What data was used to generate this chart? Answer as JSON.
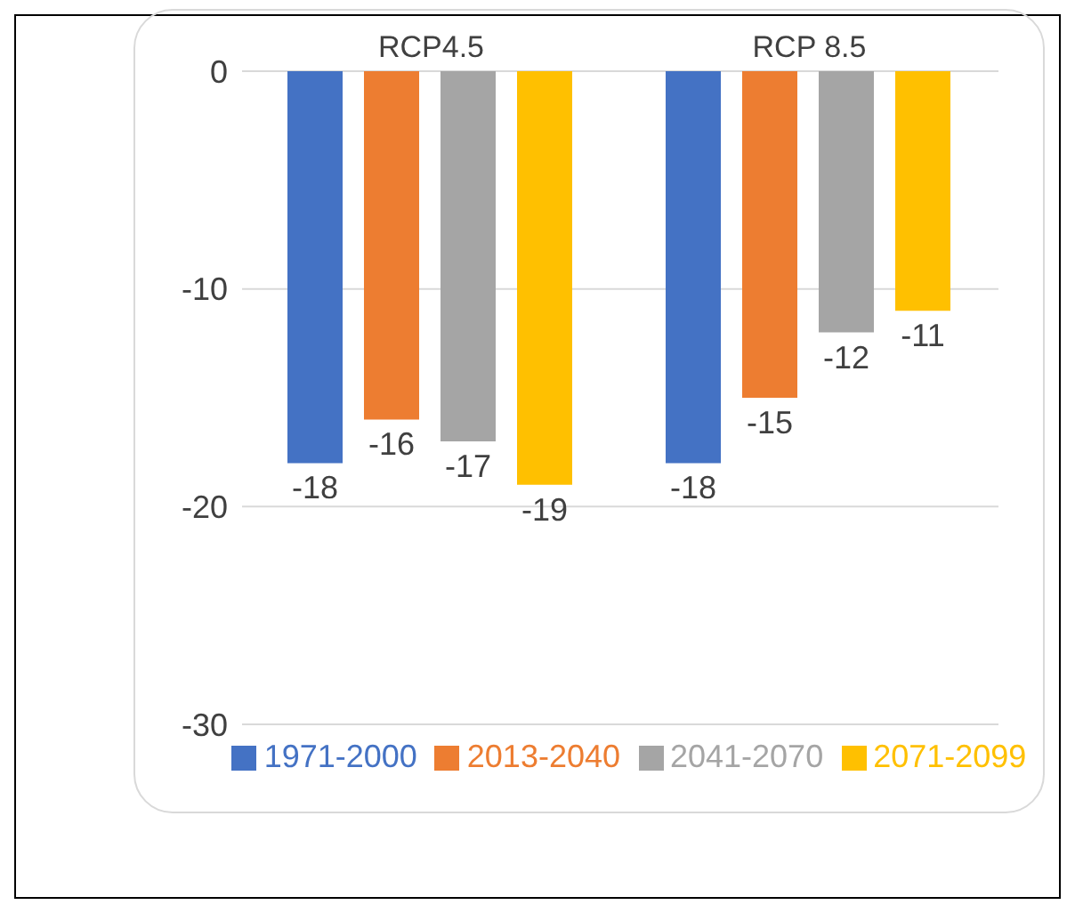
{
  "chart_data": {
    "type": "bar",
    "categories": [
      "RCP4.5",
      "RCP 8.5"
    ],
    "series": [
      {
        "name": "1971-2000",
        "color": "#4472c4",
        "values": [
          -18,
          -18
        ]
      },
      {
        "name": "2013-2040",
        "color": "#ed7d31",
        "values": [
          -16,
          -15
        ]
      },
      {
        "name": "2041-2070",
        "color": "#a5a5a5",
        "values": [
          -17,
          -12
        ]
      },
      {
        "name": "2071-2099",
        "color": "#ffc000",
        "values": [
          -19,
          -11
        ]
      }
    ],
    "ylim": [
      -30,
      0
    ],
    "yticks": [
      0,
      -10,
      -20,
      -30
    ],
    "grid": "y",
    "data_labels": true,
    "legend": "bottom"
  }
}
